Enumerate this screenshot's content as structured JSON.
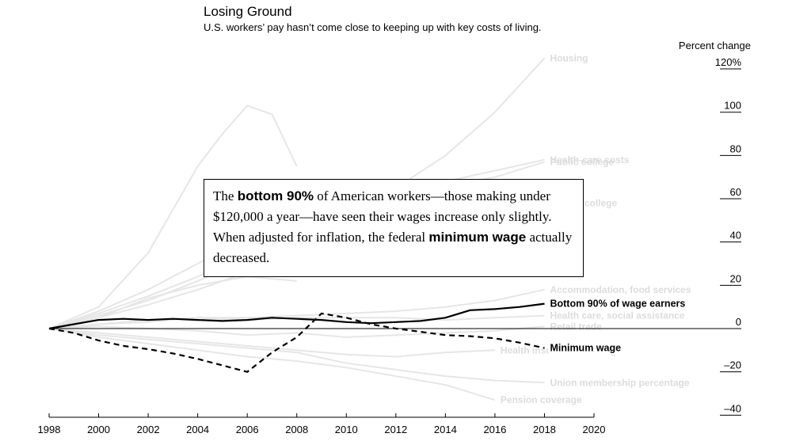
{
  "title": "Losing Ground",
  "subtitle": "U.S. workers’ pay hasn’t come close to keeping up with key costs of living.",
  "annotation": {
    "t1": "The ",
    "b1": "bottom 90%",
    "t2": " of American workers—those making under $120,000 a year—have seen their wages increase only slightly. When adjusted for inflation, the federal ",
    "b2": "minimum wage",
    "t3": " actually decreased."
  },
  "colors": {
    "highlight": "#000000",
    "background_series": "#e6e6e6",
    "background_label": "#dcdcdc",
    "axis": "#000000"
  },
  "chart_data": {
    "type": "line",
    "ylabel": "Percent change",
    "xlim": [
      1998,
      2020
    ],
    "ylim": [
      -40,
      120
    ],
    "x_ticks": [
      1998,
      2000,
      2002,
      2004,
      2006,
      2008,
      2010,
      2012,
      2014,
      2016,
      2018,
      2020
    ],
    "y_ticks": [
      {
        "value": 120,
        "label": "120%"
      },
      {
        "value": 100,
        "label": "100"
      },
      {
        "value": 80,
        "label": "80"
      },
      {
        "value": 60,
        "label": "60"
      },
      {
        "value": 40,
        "label": "40"
      },
      {
        "value": 20,
        "label": "20"
      },
      {
        "value": 0,
        "label": "0"
      },
      {
        "value": -20,
        "label": "–20"
      },
      {
        "value": -40,
        "label": "–40"
      }
    ],
    "highlight_series": [
      {
        "name": "Bottom 90% of wage earners",
        "style": "solid",
        "x": [
          1998,
          1999,
          2000,
          2001,
          2002,
          2003,
          2004,
          2005,
          2006,
          2007,
          2008,
          2009,
          2010,
          2011,
          2012,
          2013,
          2014,
          2015,
          2016,
          2017,
          2018
        ],
        "y": [
          0,
          2,
          4,
          4.5,
          4,
          4.5,
          4,
          3.5,
          4,
          5,
          4.5,
          4,
          3,
          2.5,
          3,
          3.5,
          5,
          8.5,
          9,
          10,
          11.5
        ]
      },
      {
        "name": "Minimum wage",
        "style": "dashed",
        "x": [
          1998,
          1999,
          2000,
          2001,
          2002,
          2003,
          2004,
          2005,
          2006,
          2007,
          2008,
          2009,
          2010,
          2011,
          2012,
          2013,
          2014,
          2015,
          2016,
          2017,
          2018
        ],
        "y": [
          0,
          -2,
          -5.5,
          -8,
          -9.5,
          -11.5,
          -14,
          -17,
          -20,
          -11,
          -4,
          7,
          5,
          2,
          0,
          -1.5,
          -3,
          -3.5,
          -4.5,
          -6.5,
          -9
        ]
      }
    ],
    "background_series": [
      {
        "name": "Housing",
        "x": [
          1998,
          2000,
          2002,
          2004,
          2006,
          2008,
          2010,
          2012,
          2014,
          2016,
          2018
        ],
        "y": [
          0,
          8,
          18,
          30,
          42,
          52,
          58,
          65,
          80,
          100,
          125
        ]
      },
      {
        "name": "Health-care costs",
        "x": [
          1998,
          2000,
          2002,
          2004,
          2006,
          2008,
          2010,
          2012,
          2014,
          2016,
          2018
        ],
        "y": [
          0,
          7,
          15,
          24,
          35,
          44,
          52,
          60,
          68,
          73,
          78
        ]
      },
      {
        "name": "Public college",
        "x": [
          1998,
          2000,
          2002,
          2004,
          2006,
          2008,
          2010,
          2012,
          2014,
          2016,
          2018
        ],
        "y": [
          0,
          6,
          13,
          22,
          32,
          42,
          52,
          60,
          66,
          70,
          77
        ]
      },
      {
        "name": "Private college",
        "x": [
          1998,
          2000,
          2002,
          2004,
          2006,
          2008,
          2010,
          2012,
          2014,
          2016,
          2018
        ],
        "y": [
          0,
          5,
          11,
          18,
          26,
          35,
          43,
          50,
          54,
          56,
          58
        ]
      },
      {
        "name": "Accommodation, food services",
        "x": [
          1998,
          2000,
          2002,
          2004,
          2006,
          2008,
          2010,
          2012,
          2014,
          2016,
          2018
        ],
        "y": [
          0,
          2,
          4,
          5,
          5,
          6,
          7,
          8,
          10,
          13,
          18
        ]
      },
      {
        "name": "Health care, social assistance",
        "x": [
          1998,
          2000,
          2002,
          2004,
          2006,
          2008,
          2010,
          2012,
          2014,
          2016,
          2018
        ],
        "y": [
          0,
          2,
          3,
          5,
          4,
          5,
          5,
          5,
          4,
          5,
          6
        ]
      },
      {
        "name": "Retail trade",
        "x": [
          1998,
          2000,
          2002,
          2004,
          2006,
          2008,
          2010,
          2012,
          2014,
          2016,
          2018
        ],
        "y": [
          0,
          1,
          0,
          -1,
          -3,
          -2,
          -4,
          -3,
          -2,
          -1,
          1
        ]
      },
      {
        "name": "Health insurance coverage",
        "x": [
          1998,
          2000,
          2002,
          2004,
          2006,
          2008,
          2010,
          2012,
          2014,
          2016
        ],
        "y": [
          0,
          -2,
          -4,
          -6,
          -8,
          -10,
          -12,
          -13,
          -11,
          -10
        ]
      },
      {
        "name": "Union membership percentage",
        "x": [
          1998,
          2000,
          2002,
          2004,
          2006,
          2008,
          2010,
          2012,
          2014,
          2016,
          2018
        ],
        "y": [
          0,
          -3,
          -5,
          -7,
          -9,
          -11,
          -16,
          -19,
          -22,
          -24,
          -25
        ]
      },
      {
        "name": "Pension coverage",
        "x": [
          1998,
          2000,
          2002,
          2004,
          2006,
          2008,
          2010,
          2012,
          2014,
          2016
        ],
        "y": [
          0,
          -4,
          -7,
          -10,
          -13,
          -15,
          -18,
          -22,
          -26,
          -33
        ]
      },
      {
        "name": "",
        "x": [
          1998,
          2000,
          2002,
          2003,
          2004,
          2005,
          2006,
          2007,
          2008
        ],
        "y": [
          0,
          10,
          35,
          55,
          75,
          90,
          103,
          99,
          75
        ]
      },
      {
        "name": "",
        "x": [
          1998,
          2000,
          2002,
          2004,
          2006,
          2008
        ],
        "y": [
          0,
          5,
          14,
          20,
          24,
          22
        ]
      }
    ]
  }
}
